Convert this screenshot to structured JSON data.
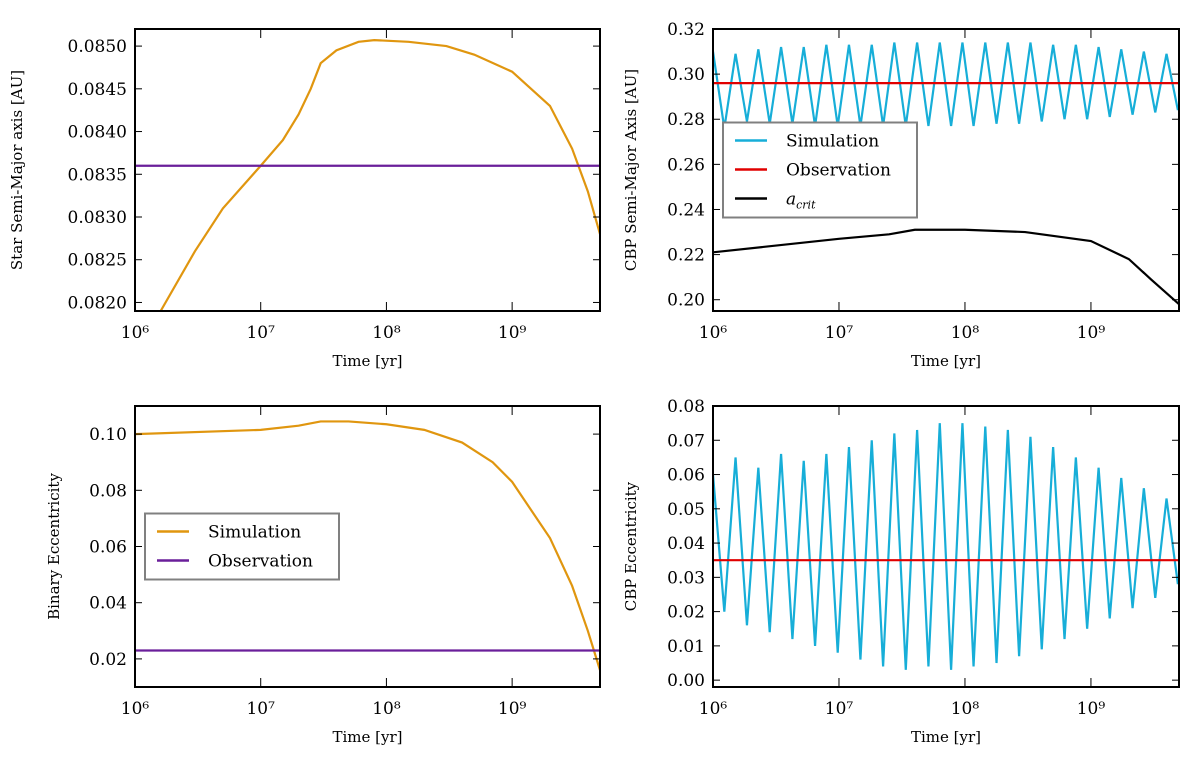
{
  "chart_data": [
    {
      "type": "line",
      "xlabel": "Time [yr]",
      "ylabel": "Star Semi-Major axis [AU]",
      "xscale": "log",
      "xlim": [
        1000000,
        5000000000
      ],
      "xticks": [
        {
          "value": 1000000,
          "label": "10⁶"
        },
        {
          "value": 10000000,
          "label": "10⁷"
        },
        {
          "value": 100000000,
          "label": "10⁸"
        },
        {
          "value": 1000000000,
          "label": "10⁹"
        }
      ],
      "ylim": [
        0.0819,
        0.0852
      ],
      "yticks": [
        {
          "value": 0.082,
          "label": "0.0820"
        },
        0.0825,
        {
          "value": 0.083,
          "label": "0.0830"
        },
        0.0835,
        {
          "value": 0.084,
          "label": "0.0840"
        },
        0.0845,
        {
          "value": 0.085,
          "label": "0.0850"
        }
      ],
      "series": [
        {
          "color": "#e0960f",
          "x": [
            1600000,
            3000000,
            5000000,
            10000000,
            15000000,
            20000000,
            25000000,
            30000000,
            40000000,
            60000000,
            80000000,
            150000000,
            300000000,
            500000000,
            1000000000,
            2000000000,
            3000000000,
            4000000000,
            5000000000
          ],
          "values": [
            0.0819,
            0.0826,
            0.0831,
            0.0836,
            0.0839,
            0.0842,
            0.0845,
            0.0848,
            0.08495,
            0.08505,
            0.08507,
            0.08505,
            0.085,
            0.0849,
            0.0847,
            0.0843,
            0.0838,
            0.0833,
            0.0828
          ]
        },
        {
          "color": "#6a1f9a",
          "x": [
            1000000,
            5000000000
          ],
          "values": [
            0.0836,
            0.0836
          ]
        }
      ]
    },
    {
      "type": "line",
      "xlabel": "Time [yr]",
      "ylabel": "CBP Semi-Major Axis [AU]",
      "xscale": "log",
      "legend": "center left",
      "xlim": [
        1000000,
        5000000000
      ],
      "xticks": [
        {
          "value": 1000000,
          "label": "10⁶"
        },
        {
          "value": 10000000,
          "label": "10⁷"
        },
        {
          "value": 100000000,
          "label": "10⁸"
        },
        {
          "value": 1000000000,
          "label": "10⁹"
        }
      ],
      "ylim": [
        0.195,
        0.32
      ],
      "yticks": [
        {
          "value": 0.2,
          "label": "0.20"
        },
        0.22,
        0.24,
        0.26,
        0.28,
        {
          "value": 0.3,
          "label": "0.30"
        },
        0.32
      ],
      "series": [
        {
          "name": "Simulation",
          "color": "#17aed8",
          "x": [
            1000000,
            1230000,
            1510000,
            1860000,
            2290000,
            2820000,
            3470000,
            4270000,
            5250000,
            6460000,
            7940000,
            9770000,
            12000000,
            14800000,
            18200000,
            22400000,
            27500000,
            33900000,
            41700000,
            51300000,
            63100000,
            77600000,
            95500000,
            117000000,
            145000000,
            178000000,
            219000000,
            269000000,
            331000000,
            407000000,
            501000000,
            617000000,
            759000000,
            933000000,
            1150000000,
            1410000000,
            1740000000,
            2140000000,
            2630000000,
            3240000000,
            3980000000,
            4900000000
          ],
          "values": [
            0.31,
            0.276,
            0.309,
            0.279,
            0.311,
            0.278,
            0.312,
            0.278,
            0.312,
            0.277,
            0.313,
            0.277,
            0.313,
            0.277,
            0.313,
            0.277,
            0.314,
            0.277,
            0.314,
            0.277,
            0.314,
            0.277,
            0.314,
            0.277,
            0.314,
            0.278,
            0.314,
            0.278,
            0.314,
            0.279,
            0.313,
            0.28,
            0.313,
            0.28,
            0.312,
            0.281,
            0.311,
            0.282,
            0.31,
            0.283,
            0.309,
            0.284
          ]
        },
        {
          "name": "Observation",
          "color": "#e00000",
          "x": [
            1000000,
            5000000000
          ],
          "values": [
            0.296,
            0.296
          ]
        },
        {
          "name": "a_crit",
          "color": "#000000",
          "x": [
            1000000,
            10000000,
            25000000,
            40000000,
            100000000,
            300000000,
            1000000000,
            2000000000,
            3000000000,
            5000000000
          ],
          "values": [
            0.221,
            0.227,
            0.229,
            0.231,
            0.231,
            0.23,
            0.226,
            0.218,
            0.209,
            0.198
          ]
        }
      ]
    },
    {
      "type": "line",
      "xlabel": "Time [yr]",
      "ylabel": "Binary Eccentricity",
      "xscale": "log",
      "legend": "center left",
      "xlim": [
        1000000,
        5000000000
      ],
      "xticks": [
        {
          "value": 1000000,
          "label": "10⁶"
        },
        {
          "value": 10000000,
          "label": "10⁷"
        },
        {
          "value": 100000000,
          "label": "10⁸"
        },
        {
          "value": 1000000000,
          "label": "10⁹"
        }
      ],
      "ylim": [
        0.01,
        0.11
      ],
      "yticks": [
        0.02,
        0.04,
        0.06,
        0.08,
        {
          "value": 0.1,
          "label": "0.10"
        }
      ],
      "series": [
        {
          "name": "Simulation",
          "color": "#e0960f",
          "x": [
            1000000,
            10000000,
            20000000,
            30000000,
            50000000,
            100000000,
            200000000,
            400000000,
            700000000,
            1000000000,
            2000000000,
            3000000000,
            4000000000,
            5000000000
          ],
          "values": [
            0.1,
            0.1015,
            0.103,
            0.1045,
            0.1045,
            0.1035,
            0.1015,
            0.097,
            0.09,
            0.083,
            0.063,
            0.046,
            0.03,
            0.016
          ]
        },
        {
          "name": "Observation",
          "color": "#6a1f9a",
          "x": [
            1000000,
            5000000000
          ],
          "values": [
            0.023,
            0.023
          ]
        }
      ]
    },
    {
      "type": "line",
      "xlabel": "Time [yr]",
      "ylabel": "CBP Eccentricity",
      "xscale": "log",
      "xlim": [
        1000000,
        5000000000
      ],
      "xticks": [
        {
          "value": 1000000,
          "label": "10⁶"
        },
        {
          "value": 10000000,
          "label": "10⁷"
        },
        {
          "value": 100000000,
          "label": "10⁸"
        },
        {
          "value": 1000000000,
          "label": "10⁹"
        }
      ],
      "ylim": [
        -0.002,
        0.08
      ],
      "yticks": [
        {
          "value": 0,
          "label": "0.00"
        },
        0.01,
        0.02,
        0.03,
        0.04,
        0.05,
        0.06,
        0.07,
        0.08
      ],
      "series": [
        {
          "color": "#17aed8",
          "x": [
            1000000,
            1230000,
            1510000,
            1860000,
            2290000,
            2820000,
            3470000,
            4270000,
            5250000,
            6460000,
            7940000,
            9770000,
            12000000,
            14800000,
            18200000,
            22400000,
            27500000,
            33900000,
            41700000,
            51300000,
            63100000,
            77600000,
            95500000,
            117000000,
            145000000,
            178000000,
            219000000,
            269000000,
            331000000,
            407000000,
            501000000,
            617000000,
            759000000,
            933000000,
            1150000000,
            1410000000,
            1740000000,
            2140000000,
            2630000000,
            3240000000,
            3980000000,
            4900000000
          ],
          "values": [
            0.06,
            0.02,
            0.065,
            0.016,
            0.062,
            0.014,
            0.066,
            0.012,
            0.064,
            0.01,
            0.066,
            0.008,
            0.068,
            0.006,
            0.07,
            0.004,
            0.072,
            0.003,
            0.073,
            0.004,
            0.075,
            0.003,
            0.075,
            0.004,
            0.074,
            0.005,
            0.073,
            0.007,
            0.071,
            0.009,
            0.068,
            0.012,
            0.065,
            0.015,
            0.062,
            0.018,
            0.059,
            0.021,
            0.056,
            0.024,
            0.053,
            0.028
          ]
        },
        {
          "color": "#e00000",
          "x": [
            1000000,
            5000000000
          ],
          "values": [
            0.035,
            0.035
          ]
        }
      ]
    }
  ]
}
